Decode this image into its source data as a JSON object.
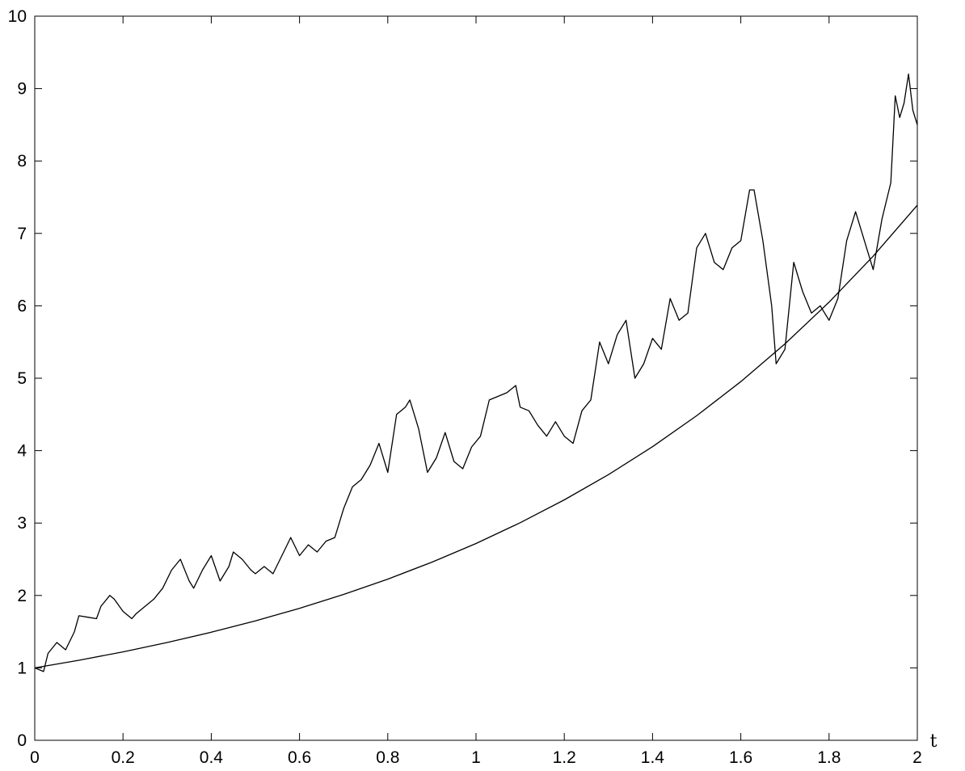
{
  "chart_data": {
    "type": "line",
    "title": "",
    "xlabel": "t",
    "ylabel": "",
    "xlim": [
      0,
      2
    ],
    "ylim": [
      0,
      10
    ],
    "grid": false,
    "legend": "none",
    "xticks": [
      0,
      0.2,
      0.4,
      0.6,
      0.8,
      1,
      1.2,
      1.4,
      1.6,
      1.8,
      2
    ],
    "xtick_labels": [
      "0",
      "0.2",
      "0.4",
      "0.6",
      "0.8",
      "1",
      "1.2",
      "1.4",
      "1.6",
      "1.8",
      "2"
    ],
    "yticks": [
      0,
      1,
      2,
      3,
      4,
      5,
      6,
      7,
      8,
      9,
      10
    ],
    "ytick_labels": [
      "0",
      "1",
      "2",
      "3",
      "4",
      "5",
      "6",
      "7",
      "8",
      "9",
      "10"
    ],
    "series": [
      {
        "color": "#000000",
        "x": [
          0,
          0.02,
          0.03,
          0.05,
          0.07,
          0.09,
          0.1,
          0.12,
          0.14,
          0.15,
          0.17,
          0.18,
          0.2,
          0.22,
          0.23,
          0.25,
          0.27,
          0.29,
          0.31,
          0.33,
          0.35,
          0.36,
          0.38,
          0.4,
          0.42,
          0.44,
          0.45,
          0.47,
          0.49,
          0.5,
          0.52,
          0.54,
          0.56,
          0.58,
          0.6,
          0.62,
          0.64,
          0.66,
          0.68,
          0.7,
          0.72,
          0.74,
          0.76,
          0.78,
          0.8,
          0.82,
          0.84,
          0.85,
          0.87,
          0.89,
          0.91,
          0.93,
          0.95,
          0.97,
          0.99,
          1.01,
          1.03,
          1.05,
          1.07,
          1.09,
          1.1,
          1.12,
          1.14,
          1.16,
          1.18,
          1.2,
          1.22,
          1.24,
          1.26,
          1.28,
          1.3,
          1.32,
          1.34,
          1.36,
          1.38,
          1.4,
          1.42,
          1.44,
          1.46,
          1.48,
          1.5,
          1.52,
          1.54,
          1.56,
          1.58,
          1.6,
          1.62,
          1.63,
          1.65,
          1.67,
          1.68,
          1.7,
          1.72,
          1.74,
          1.76,
          1.78,
          1.8,
          1.82,
          1.84,
          1.86,
          1.88,
          1.9,
          1.92,
          1.94,
          1.95,
          1.96,
          1.97,
          1.98,
          1.99,
          2
        ],
        "y": [
          1,
          0.95,
          1.2,
          1.35,
          1.25,
          1.5,
          1.72,
          1.7,
          1.68,
          1.85,
          2.0,
          1.95,
          1.78,
          1.68,
          1.75,
          1.85,
          1.95,
          2.1,
          2.35,
          2.5,
          2.2,
          2.1,
          2.35,
          2.55,
          2.2,
          2.4,
          2.6,
          2.5,
          2.35,
          2.3,
          2.4,
          2.3,
          2.55,
          2.8,
          2.55,
          2.7,
          2.6,
          2.75,
          2.8,
          3.2,
          3.5,
          3.6,
          3.8,
          4.1,
          3.7,
          4.5,
          4.6,
          4.7,
          4.3,
          3.7,
          3.9,
          4.25,
          3.85,
          3.75,
          4.05,
          4.2,
          4.7,
          4.75,
          4.8,
          4.9,
          4.6,
          4.55,
          4.35,
          4.2,
          4.4,
          4.2,
          4.1,
          4.55,
          4.7,
          5.5,
          5.2,
          5.6,
          5.8,
          5.0,
          5.2,
          5.55,
          5.4,
          6.1,
          5.8,
          5.9,
          6.8,
          7.0,
          6.6,
          6.5,
          6.8,
          6.9,
          7.6,
          7.6,
          6.9,
          6.0,
          5.2,
          5.4,
          6.6,
          6.2,
          5.9,
          6.0,
          5.8,
          6.1,
          6.9,
          7.3,
          6.9,
          6.5,
          7.2,
          7.7,
          8.9,
          8.6,
          8.8,
          9.2,
          8.7,
          8.5
        ]
      },
      {
        "color": "#000000",
        "x": [
          0,
          0.1,
          0.2,
          0.3,
          0.4,
          0.5,
          0.6,
          0.7,
          0.8,
          0.9,
          1.0,
          1.1,
          1.2,
          1.3,
          1.4,
          1.5,
          1.6,
          1.7,
          1.8,
          1.9,
          2.0
        ],
        "y": [
          1.0,
          1.105,
          1.221,
          1.35,
          1.492,
          1.649,
          1.822,
          2.014,
          2.226,
          2.46,
          2.718,
          3.004,
          3.32,
          3.669,
          4.055,
          4.482,
          4.953,
          5.474,
          6.05,
          6.686,
          7.389
        ]
      }
    ]
  }
}
